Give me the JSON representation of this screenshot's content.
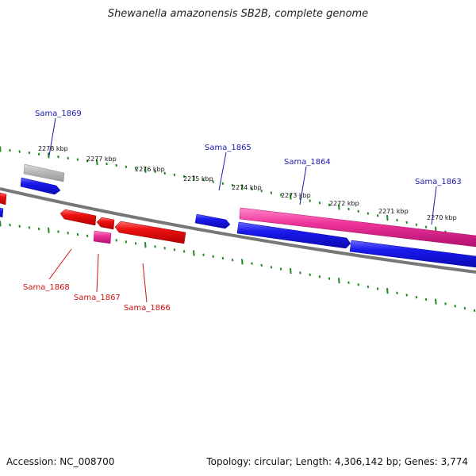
{
  "title": "Shewanella amazonensis SB2B, complete genome",
  "footer": {
    "accession": "Accession: NC_008700",
    "stats": "Topology: circular; Length: 4,306,142 bp; Genes: 3,774"
  },
  "colors": {
    "forward_cds": "#1a1aee",
    "reverse_cds": "#ee1111",
    "rna": "#ee3399",
    "pseudogene": "#bbbbbb",
    "backbone": "#888888",
    "ruler_ticks": "#228822",
    "forward_label": "#1a1aaa",
    "reverse_label": "#cc1111"
  },
  "ruler_labels": [
    "2278 kbp",
    "2277 kbp",
    "2276 kbp",
    "2275 kbp",
    "2274 kbp",
    "2273 kbp",
    "2272 kbp",
    "2271 kbp",
    "2270 kbp"
  ],
  "gene_labels": {
    "forward": [
      "Sama_1869",
      "Sama_1865",
      "Sama_1864",
      "Sama_1863"
    ],
    "reverse": [
      "Sama_1868",
      "Sama_1867",
      "Sama_1866"
    ]
  }
}
